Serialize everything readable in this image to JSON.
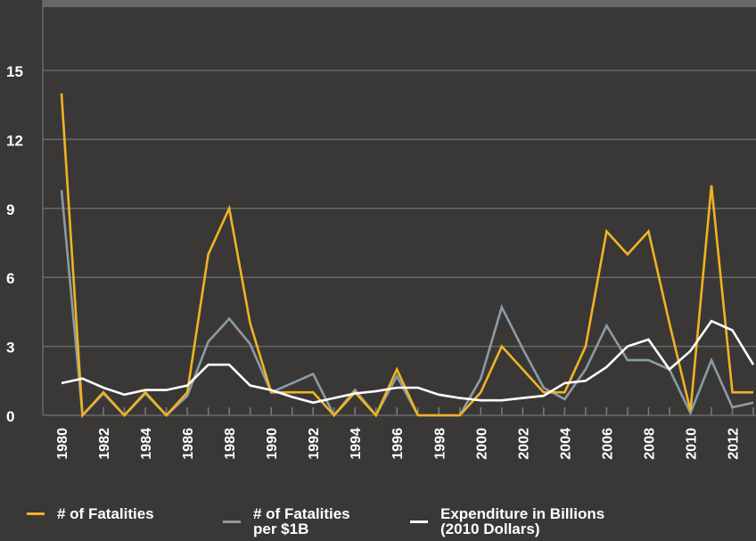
{
  "chart_data": {
    "type": "line",
    "title": "",
    "xlabel": "",
    "ylabel": "",
    "x": [
      1980,
      1981,
      1982,
      1983,
      1984,
      1985,
      1986,
      1987,
      1988,
      1989,
      1990,
      1991,
      1992,
      1993,
      1994,
      1995,
      1996,
      1997,
      1998,
      1999,
      2000,
      2001,
      2002,
      2003,
      2004,
      2005,
      2006,
      2007,
      2008,
      2009,
      2010,
      2011,
      2012,
      2013
    ],
    "x_tick_labels": [
      "1980",
      "1982",
      "1984",
      "1986",
      "1988",
      "1990",
      "1992",
      "1994",
      "1996",
      "1998",
      "2000",
      "2002",
      "2004",
      "2006",
      "2008",
      "2010",
      "2012"
    ],
    "y_ticks": [
      0,
      3,
      6,
      9,
      12,
      15
    ],
    "y_tick_labels": [
      "0",
      "3",
      "6",
      "9",
      "12",
      "15"
    ],
    "ylim": [
      0,
      18
    ],
    "xlim": [
      1980,
      2013
    ],
    "grid": "horizontal",
    "legend_position": "bottom",
    "series": [
      {
        "name": "# of Fatalities",
        "color": "#f0b323",
        "values": [
          14,
          0,
          1,
          0,
          1,
          0,
          1,
          7,
          9,
          4,
          1,
          1,
          1,
          0,
          1,
          0,
          2,
          0,
          0,
          0,
          1,
          3,
          2,
          1,
          1,
          3,
          8,
          7,
          8,
          4,
          0.2,
          10,
          1,
          1
        ]
      },
      {
        "name": "# of Fatalities per $1B",
        "color": "#8a9ba8",
        "values": [
          9.8,
          0,
          0.95,
          0,
          0.95,
          0,
          0.85,
          3.2,
          4.2,
          3.1,
          1.0,
          1.4,
          1.8,
          0,
          1.1,
          0,
          1.7,
          0,
          0,
          0,
          1.6,
          4.7,
          2.9,
          1.2,
          0.7,
          2.0,
          3.9,
          2.4,
          2.4,
          2.0,
          0.1,
          2.4,
          0.35,
          0.55
        ]
      },
      {
        "name": "Expenditure in Billions (2010 Dollars)",
        "color": "#ffffff",
        "values": [
          1.4,
          1.6,
          1.2,
          0.9,
          1.1,
          1.1,
          1.3,
          2.2,
          2.2,
          1.3,
          1.1,
          0.8,
          0.55,
          0.75,
          0.95,
          1.05,
          1.2,
          1.2,
          0.9,
          0.75,
          0.65,
          0.65,
          0.75,
          0.85,
          1.4,
          1.5,
          2.1,
          3.0,
          3.3,
          2.0,
          2.8,
          4.1,
          3.7,
          2.2
        ]
      }
    ]
  },
  "legend": {
    "items": [
      {
        "label_lines": [
          "# of Fatalities"
        ]
      },
      {
        "label_lines": [
          "# of Fatalities",
          "per $1B"
        ]
      },
      {
        "label_lines": [
          "Expenditure in Billions",
          "(2010 Dollars)"
        ]
      }
    ]
  }
}
